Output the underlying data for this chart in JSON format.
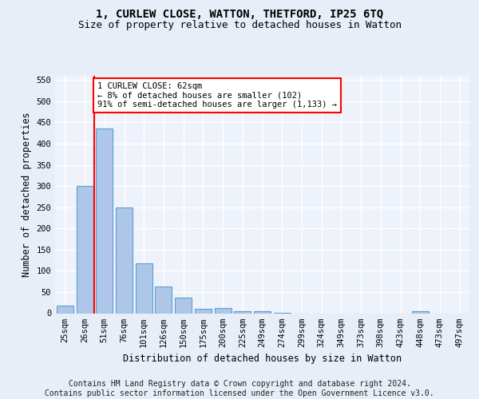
{
  "title1": "1, CURLEW CLOSE, WATTON, THETFORD, IP25 6TQ",
  "title2": "Size of property relative to detached houses in Watton",
  "xlabel": "Distribution of detached houses by size in Watton",
  "ylabel": "Number of detached properties",
  "footer1": "Contains HM Land Registry data © Crown copyright and database right 2024.",
  "footer2": "Contains public sector information licensed under the Open Government Licence v3.0.",
  "bar_labels": [
    "25sqm",
    "26sqm",
    "51sqm",
    "76sqm",
    "101sqm",
    "126sqm",
    "150sqm",
    "175sqm",
    "200sqm",
    "225sqm",
    "249sqm",
    "274sqm",
    "299sqm",
    "324sqm",
    "349sqm",
    "373sqm",
    "398sqm",
    "423sqm",
    "448sqm",
    "473sqm",
    "497sqm"
  ],
  "bar_values": [
    18,
    300,
    435,
    250,
    118,
    63,
    37,
    10,
    12,
    5,
    4,
    1,
    0,
    0,
    0,
    0,
    0,
    0,
    5,
    0,
    0
  ],
  "bar_color": "#aec6e8",
  "bar_edge_color": "#5a9fd4",
  "annotation_box_text": "1 CURLEW CLOSE: 62sqm\n← 8% of detached houses are smaller (102)\n91% of semi-detached houses are larger (1,133) →",
  "annotation_box_color": "white",
  "annotation_box_edge_color": "red",
  "annotation_line_color": "red",
  "ylim": [
    0,
    560
  ],
  "yticks": [
    0,
    50,
    100,
    150,
    200,
    250,
    300,
    350,
    400,
    450,
    500,
    550
  ],
  "bg_color": "#e8eef7",
  "plot_bg_color": "#eef2fa",
  "grid_color": "white",
  "title1_fontsize": 10,
  "title2_fontsize": 9,
  "xlabel_fontsize": 8.5,
  "ylabel_fontsize": 8.5,
  "tick_fontsize": 7.5,
  "footer_fontsize": 7.0,
  "annot_fontsize": 7.5
}
